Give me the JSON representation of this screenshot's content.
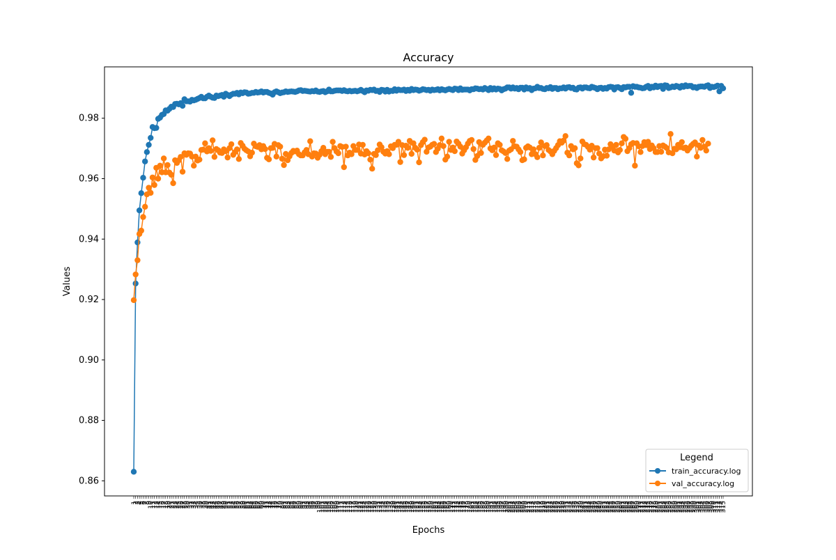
{
  "chart_data": {
    "type": "line",
    "title": "Accuracy",
    "xlabel": "Epochs",
    "ylabel": "Values",
    "xlim": [
      0,
      300
    ],
    "ylim": [
      0.855,
      0.997
    ],
    "yticks": [
      0.86,
      0.88,
      0.9,
      0.92,
      0.94,
      0.96,
      0.98
    ],
    "grid": false,
    "legend": {
      "title": "Legend",
      "placement": "lower-right"
    },
    "series": [
      {
        "name": "train_accuracy.log",
        "color": "#1f77b4",
        "marker": "circle",
        "values": [
          0.863,
          0.9253,
          0.9389,
          0.9495,
          0.9552,
          0.9603,
          0.9657,
          0.9688,
          0.9712,
          0.9735,
          0.9771,
          0.9767,
          0.9768,
          0.9798,
          0.9802,
          0.9811,
          0.9814,
          0.9826,
          0.9825,
          0.9831,
          0.9838,
          0.9837,
          0.9847,
          0.9848,
          0.9846,
          0.985,
          0.9841,
          0.9863,
          0.9856,
          0.9856,
          0.9855,
          0.9861,
          0.9859,
          0.9861,
          0.9864,
          0.9867,
          0.9871,
          0.9866,
          0.9866,
          0.9871,
          0.9875,
          0.9871,
          0.9868,
          0.9867,
          0.9875,
          0.9873,
          0.9875,
          0.9877,
          0.9871,
          0.9881,
          0.9877,
          0.9873,
          0.9878,
          0.9881,
          0.9881,
          0.9884,
          0.9879,
          0.9885,
          0.9883,
          0.9886,
          0.9885,
          0.9881,
          0.9882,
          0.9884,
          0.9884,
          0.9887,
          0.9885,
          0.9886,
          0.9889,
          0.9885,
          0.9887,
          0.9887,
          0.9884,
          0.9882,
          0.9878,
          0.9886,
          0.9889,
          0.9886,
          0.9883,
          0.9885,
          0.9886,
          0.9889,
          0.9887,
          0.9888,
          0.9889,
          0.9888,
          0.9887,
          0.9889,
          0.9892,
          0.9893,
          0.989,
          0.9891,
          0.989,
          0.9889,
          0.9888,
          0.989,
          0.9889,
          0.9892,
          0.9888,
          0.9887,
          0.9889,
          0.989,
          0.9886,
          0.9889,
          0.9895,
          0.9889,
          0.9889,
          0.9891,
          0.9892,
          0.9892,
          0.9892,
          0.989,
          0.9893,
          0.989,
          0.9889,
          0.9891,
          0.9889,
          0.989,
          0.9891,
          0.9889,
          0.9891,
          0.9894,
          0.989,
          0.9886,
          0.9892,
          0.9891,
          0.9894,
          0.9893,
          0.9895,
          0.989,
          0.9891,
          0.9887,
          0.9894,
          0.9893,
          0.9888,
          0.9894,
          0.9888,
          0.9891,
          0.989,
          0.9896,
          0.9891,
          0.9895,
          0.9893,
          0.9893,
          0.9895,
          0.989,
          0.9894,
          0.9891,
          0.9897,
          0.9893,
          0.9895,
          0.9894,
          0.9891,
          0.9893,
          0.9896,
          0.9895,
          0.9893,
          0.9894,
          0.9891,
          0.9895,
          0.9893,
          0.9894,
          0.9896,
          0.9892,
          0.9896,
          0.9894,
          0.9892,
          0.9895,
          0.9897,
          0.9895,
          0.9893,
          0.9898,
          0.9897,
          0.9893,
          0.9899,
          0.9894,
          0.9895,
          0.9895,
          0.9895,
          0.9892,
          0.9896,
          0.9896,
          0.9899,
          0.9898,
          0.9896,
          0.9897,
          0.9895,
          0.99,
          0.9897,
          0.9893,
          0.99,
          0.9895,
          0.9899,
          0.9895,
          0.9898,
          0.9897,
          0.9892,
          0.9896,
          0.9898,
          0.9902,
          0.9902,
          0.9898,
          0.9902,
          0.9898,
          0.99,
          0.9896,
          0.9901,
          0.9901,
          0.9895,
          0.9902,
          0.9898,
          0.99,
          0.9893,
          0.9898,
          0.9899,
          0.9904,
          0.99,
          0.99,
          0.9897,
          0.9896,
          0.99,
          0.9899,
          0.9903,
          0.9897,
          0.99,
          0.99,
          0.9896,
          0.9899,
          0.9899,
          0.9902,
          0.9898,
          0.9902,
          0.9903,
          0.99,
          0.9901,
          0.9896,
          0.9895,
          0.9901,
          0.9902,
          0.9898,
          0.9902,
          0.9902,
          0.99,
          0.9899,
          0.9904,
          0.9902,
          0.99,
          0.9896,
          0.99,
          0.9901,
          0.9897,
          0.99,
          0.9898,
          0.9903,
          0.9904,
          0.9903,
          0.9895,
          0.9902,
          0.9903,
          0.99,
          0.9896,
          0.9903,
          0.9902,
          0.9904,
          0.9904,
          0.9884,
          0.9906,
          0.9904,
          0.9904,
          0.9902,
          0.9901,
          0.9899,
          0.99,
          0.9904,
          0.9907,
          0.9899,
          0.9904,
          0.9902,
          0.9908,
          0.9903,
          0.9906,
          0.9907,
          0.9897,
          0.9909,
          0.9908,
          0.99,
          0.9902,
          0.9905,
          0.9903,
          0.9907,
          0.9905,
          0.9901,
          0.9907,
          0.9904,
          0.9909,
          0.9906,
          0.9907,
          0.9907,
          0.9902,
          0.9903,
          0.99,
          0.9904,
          0.9905,
          0.9905,
          0.9904,
          0.9907,
          0.9909,
          0.99,
          0.9904,
          0.9903,
          0.9905,
          0.9908,
          0.9889,
          0.9907,
          0.9899
        ]
      },
      {
        "name": "val_accuracy.log",
        "color": "#ff7f0e",
        "marker": "circle",
        "values": [
          0.9198,
          0.9283,
          0.933,
          0.9417,
          0.9428,
          0.9473,
          0.9507,
          0.9548,
          0.957,
          0.9553,
          0.9604,
          0.9579,
          0.9636,
          0.96,
          0.9643,
          0.9621,
          0.9667,
          0.9621,
          0.9645,
          0.962,
          0.9613,
          0.9585,
          0.9661,
          0.9652,
          0.9661,
          0.9672,
          0.9623,
          0.9684,
          0.9679,
          0.9684,
          0.9683,
          0.9673,
          0.9643,
          0.9673,
          0.966,
          0.9663,
          0.9695,
          0.9696,
          0.9717,
          0.969,
          0.9701,
          0.9692,
          0.9727,
          0.9672,
          0.9698,
          0.9694,
          0.9686,
          0.9685,
          0.9697,
          0.9691,
          0.967,
          0.9701,
          0.9714,
          0.9679,
          0.9688,
          0.9697,
          0.9665,
          0.9718,
          0.9709,
          0.9699,
          0.9694,
          0.969,
          0.9674,
          0.9686,
          0.9716,
          0.9707,
          0.9705,
          0.9711,
          0.9697,
          0.9708,
          0.9698,
          0.9669,
          0.9664,
          0.9701,
          0.9702,
          0.9715,
          0.9673,
          0.9711,
          0.9706,
          0.9666,
          0.9645,
          0.9682,
          0.9661,
          0.9674,
          0.9685,
          0.9692,
          0.969,
          0.9693,
          0.9681,
          0.9677,
          0.9677,
          0.9687,
          0.9695,
          0.9681,
          0.9724,
          0.9673,
          0.9684,
          0.9683,
          0.9669,
          0.9679,
          0.9691,
          0.9702,
          0.9681,
          0.9689,
          0.9689,
          0.9672,
          0.9722,
          0.9701,
          0.969,
          0.9684,
          0.9708,
          0.9705,
          0.9638,
          0.9706,
          0.9677,
          0.9686,
          0.9681,
          0.9708,
          0.9695,
          0.9695,
          0.9713,
          0.9683,
          0.9712,
          0.968,
          0.9691,
          0.9684,
          0.9663,
          0.9633,
          0.9682,
          0.9678,
          0.9694,
          0.9713,
          0.9704,
          0.9689,
          0.9683,
          0.9691,
          0.9681,
          0.9707,
          0.9701,
          0.9712,
          0.9712,
          0.9722,
          0.9655,
          0.9711,
          0.9678,
          0.9709,
          0.9702,
          0.9725,
          0.9682,
          0.9717,
          0.9702,
          0.9696,
          0.9654,
          0.9711,
          0.9721,
          0.9729,
          0.9689,
          0.9703,
          0.9706,
          0.9712,
          0.9715,
          0.9688,
          0.9699,
          0.9711,
          0.9733,
          0.9708,
          0.9663,
          0.9673,
          0.9722,
          0.9695,
          0.9703,
          0.9691,
          0.9723,
          0.9716,
          0.9706,
          0.9683,
          0.9694,
          0.9704,
          0.9716,
          0.9725,
          0.9728,
          0.9698,
          0.9662,
          0.9675,
          0.9721,
          0.9685,
          0.9712,
          0.9719,
          0.9726,
          0.9733,
          0.97,
          0.9694,
          0.9703,
          0.9678,
          0.9717,
          0.9712,
          0.9694,
          0.969,
          0.9685,
          0.9665,
          0.9693,
          0.9697,
          0.9725,
          0.9707,
          0.9706,
          0.9697,
          0.9688,
          0.9661,
          0.9664,
          0.9702,
          0.9707,
          0.9703,
          0.9681,
          0.9697,
          0.9681,
          0.9671,
          0.9702,
          0.972,
          0.9677,
          0.9708,
          0.9711,
          0.9695,
          0.969,
          0.9681,
          0.9692,
          0.9701,
          0.9711,
          0.9724,
          0.9719,
          0.9726,
          0.9741,
          0.9686,
          0.9677,
          0.9708,
          0.9697,
          0.9701,
          0.9651,
          0.9644,
          0.9667,
          0.9723,
          0.9714,
          0.9712,
          0.9705,
          0.9696,
          0.9709,
          0.967,
          0.9701,
          0.9701,
          0.9683,
          0.9667,
          0.9674,
          0.9696,
          0.9676,
          0.9697,
          0.9714,
          0.9705,
          0.9693,
          0.9712,
          0.9687,
          0.9695,
          0.9717,
          0.9738,
          0.9732,
          0.9691,
          0.9701,
          0.9714,
          0.9718,
          0.9643,
          0.9717,
          0.9707,
          0.9688,
          0.9708,
          0.9721,
          0.9711,
          0.9722,
          0.9698,
          0.971,
          0.9701,
          0.9688,
          0.9688,
          0.9708,
          0.9689,
          0.971,
          0.9706,
          0.9701,
          0.9687,
          0.9748,
          0.9684,
          0.9699,
          0.9697,
          0.9712,
          0.9704,
          0.9721,
          0.9701,
          0.9703,
          0.9693,
          0.9701,
          0.9709,
          0.9715,
          0.972,
          0.9673,
          0.971,
          0.9702,
          0.9728,
          0.9706,
          0.9693,
          0.9716
        ]
      }
    ]
  }
}
